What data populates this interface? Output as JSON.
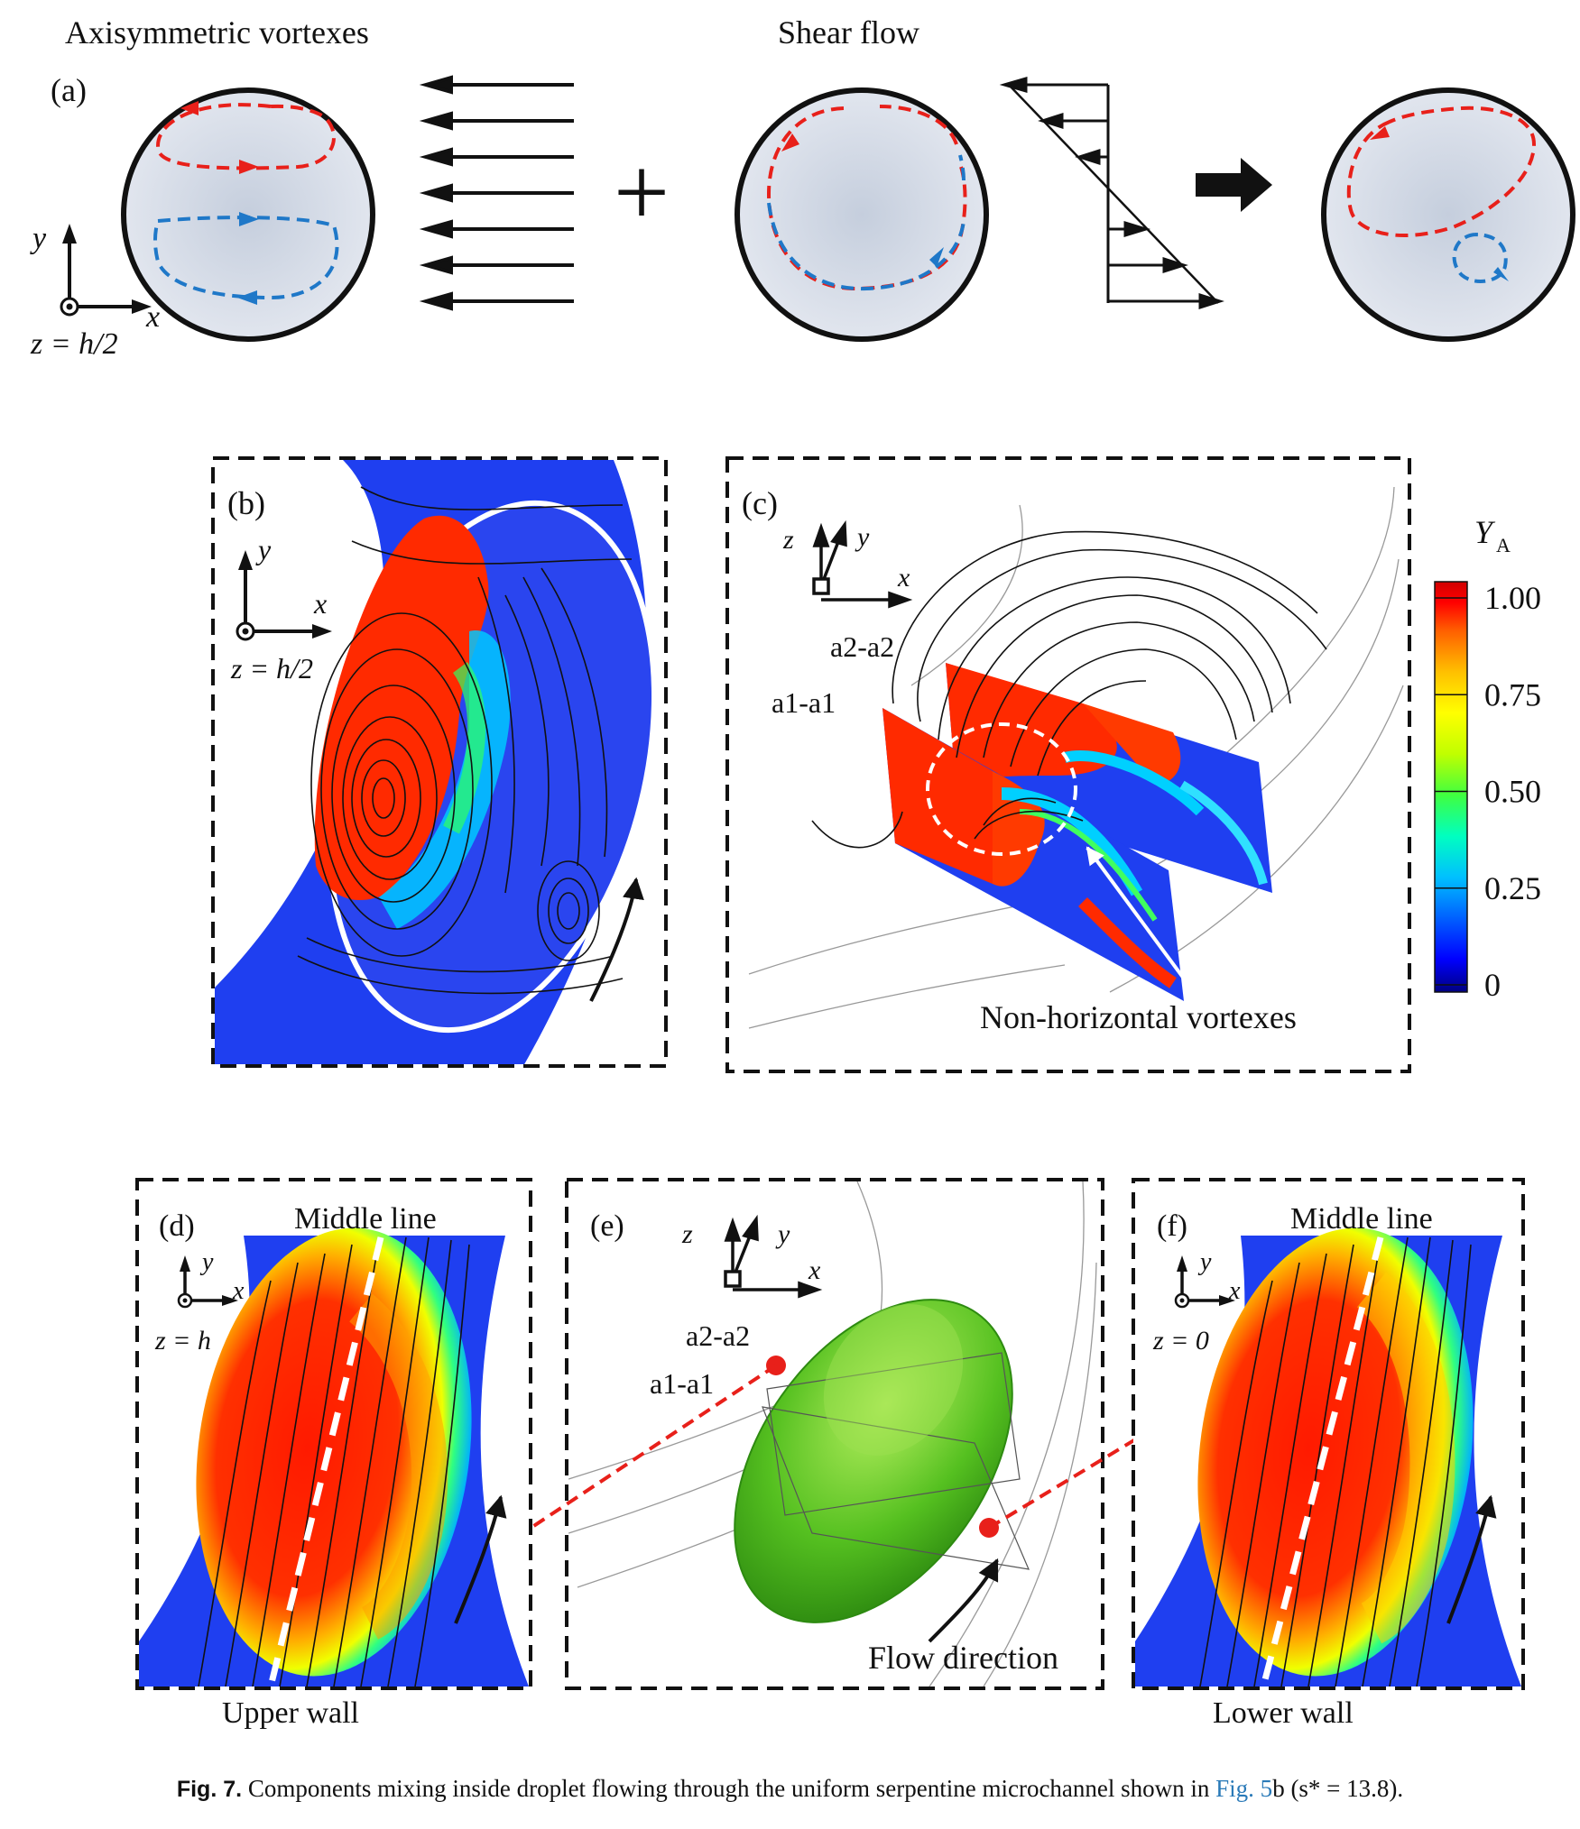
{
  "panel_a": {
    "title_left": "Axisymmetric vortexes",
    "title_right": "Shear flow",
    "label": "(a)",
    "axis_y": "y",
    "axis_x": "x",
    "plane": "z = h/2",
    "plus": "+"
  },
  "panel_b": {
    "label": "(b)",
    "axis_y": "y",
    "axis_x": "x",
    "plane": "z = h/2"
  },
  "panel_c": {
    "label": "(c)",
    "axis_z": "z",
    "axis_y": "y",
    "axis_x": "x",
    "slice_a2": "a2-a2",
    "slice_a1": "a1-a1",
    "annotation": "Non-horizontal vortexes"
  },
  "colorbar": {
    "title": "Y",
    "title_sub": "A",
    "ticks": [
      "1.00",
      "0.75",
      "0.50",
      "0.25",
      "0"
    ],
    "colors": [
      "#000080",
      "#0000ff",
      "#0060ff",
      "#00c0ff",
      "#00ffc0",
      "#40ff40",
      "#c0ff00",
      "#ffff00",
      "#ffc000",
      "#ff6000",
      "#ff0000",
      "#d00000"
    ]
  },
  "panel_d": {
    "label": "(d)",
    "axis_y": "y",
    "axis_x": "x",
    "plane": "z = h",
    "top_text": "Middle line",
    "bottom_text": "Upper wall"
  },
  "panel_e": {
    "label": "(e)",
    "axis_z": "z",
    "axis_y": "y",
    "axis_x": "x",
    "slice_a2": "a2-a2",
    "slice_a1": "a1-a1",
    "flow_text": "Flow direction"
  },
  "panel_f": {
    "label": "(f)",
    "axis_y": "y",
    "axis_x": "x",
    "plane": "z = 0",
    "top_text": "Middle line",
    "bottom_text": "Lower wall"
  },
  "caption": {
    "fig": "Fig. 7.",
    "text": "Components mixing inside droplet flowing through the uniform serpentine microchannel shown in",
    "link": "Fig. 5",
    "tail": "b (s* = 13.8)."
  }
}
